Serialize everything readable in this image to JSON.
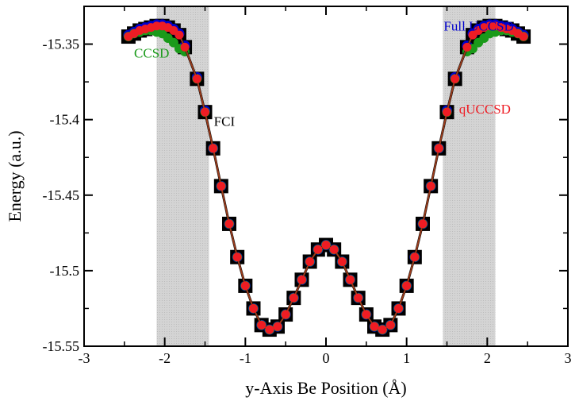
{
  "chart_data": {
    "type": "line",
    "xlabel": "y-Axis Be Position (Å)",
    "ylabel": "Energy (a.u.)",
    "xlim": [
      -3,
      3
    ],
    "ylim": [
      -15.55,
      -15.325
    ],
    "x_ticks": [
      -3,
      -2,
      -1,
      0,
      1,
      2,
      3
    ],
    "x_tick_labels": [
      "-3",
      "-2",
      "-1",
      "0",
      "1",
      "2",
      "3"
    ],
    "y_ticks": [
      -15.55,
      -15.5,
      -15.45,
      -15.4,
      -15.35
    ],
    "y_tick_labels": [
      "-15.55",
      "-15.5",
      "-15.45",
      "-15.4",
      "-15.35"
    ],
    "shaded_regions": [
      [
        -2.1,
        -1.45
      ],
      [
        1.45,
        2.1
      ]
    ],
    "x": [
      -2.45,
      -2.38,
      -2.31,
      -2.24,
      -2.17,
      -2.1,
      -2.03,
      -1.96,
      -1.89,
      -1.82,
      -1.75,
      -1.6,
      -1.5,
      -1.4,
      -1.3,
      -1.2,
      -1.1,
      -1.0,
      -0.9,
      -0.8,
      -0.7,
      -0.6,
      -0.5,
      -0.4,
      -0.3,
      -0.2,
      -0.1,
      0.0,
      0.1,
      0.2,
      0.3,
      0.4,
      0.5,
      0.6,
      0.7,
      0.8,
      0.9,
      1.0,
      1.1,
      1.2,
      1.3,
      1.4,
      1.5,
      1.6,
      1.75,
      1.82,
      1.89,
      1.96,
      2.03,
      2.1,
      2.17,
      2.24,
      2.31,
      2.38,
      2.45
    ],
    "series": [
      {
        "name": "FCI",
        "color": "#000000",
        "marker": "square",
        "values": [
          -15.345,
          -15.343,
          -15.341,
          -15.34,
          -15.339,
          -15.338,
          -15.338,
          -15.339,
          -15.341,
          -15.344,
          -15.352,
          -15.373,
          -15.395,
          -15.419,
          -15.444,
          -15.469,
          -15.491,
          -15.51,
          -15.525,
          -15.536,
          -15.539,
          -15.537,
          -15.529,
          -15.518,
          -15.506,
          -15.494,
          -15.486,
          -15.483,
          -15.486,
          -15.494,
          -15.506,
          -15.518,
          -15.529,
          -15.537,
          -15.539,
          -15.536,
          -15.525,
          -15.51,
          -15.491,
          -15.469,
          -15.444,
          -15.419,
          -15.395,
          -15.373,
          -15.352,
          -15.344,
          -15.341,
          -15.339,
          -15.338,
          -15.338,
          -15.339,
          -15.34,
          -15.341,
          -15.343,
          -15.345
        ]
      },
      {
        "name": "Full UCCSD",
        "color": "#0000cc",
        "marker": "circle",
        "values": [
          -15.344,
          -15.342,
          -15.34,
          -15.339,
          -15.338,
          -15.337,
          -15.337,
          -15.338,
          -15.34,
          -15.343,
          -15.351,
          -15.372,
          -15.394,
          -15.419,
          -15.444,
          -15.469,
          -15.491,
          -15.51,
          -15.525,
          -15.536,
          -15.539,
          -15.537,
          -15.529,
          -15.518,
          -15.506,
          -15.494,
          -15.486,
          -15.483,
          -15.486,
          -15.494,
          -15.506,
          -15.518,
          -15.529,
          -15.537,
          -15.539,
          -15.536,
          -15.525,
          -15.51,
          -15.491,
          -15.469,
          -15.444,
          -15.419,
          -15.394,
          -15.372,
          -15.351,
          -15.343,
          -15.34,
          -15.338,
          -15.337,
          -15.337,
          -15.338,
          -15.339,
          -15.34,
          -15.342,
          -15.344
        ]
      },
      {
        "name": "CCSD",
        "color": "#1a9a1a",
        "marker": "circle",
        "values": [
          -15.345,
          -15.343,
          -15.342,
          -15.341,
          -15.341,
          -15.342,
          -15.343,
          -15.346,
          -15.349,
          -15.353,
          -15.355,
          -15.373,
          -15.395,
          -15.419,
          -15.444,
          -15.469,
          -15.491,
          -15.51,
          -15.525,
          -15.536,
          -15.539,
          -15.537,
          -15.529,
          -15.518,
          -15.506,
          -15.494,
          -15.486,
          -15.483,
          -15.486,
          -15.494,
          -15.506,
          -15.518,
          -15.529,
          -15.537,
          -15.539,
          -15.536,
          -15.525,
          -15.51,
          -15.491,
          -15.469,
          -15.444,
          -15.419,
          -15.395,
          -15.373,
          -15.355,
          -15.353,
          -15.349,
          -15.346,
          -15.343,
          -15.342,
          -15.341,
          -15.341,
          -15.342,
          -15.343,
          -15.345
        ]
      },
      {
        "name": "qUCCSD",
        "color": "#ee1c24",
        "marker": "circle",
        "values": [
          -15.345,
          -15.343,
          -15.341,
          -15.34,
          -15.339,
          -15.338,
          -15.338,
          -15.339,
          -15.341,
          -15.344,
          -15.352,
          -15.373,
          -15.395,
          -15.419,
          -15.444,
          -15.469,
          -15.491,
          -15.51,
          -15.525,
          -15.536,
          -15.539,
          -15.537,
          -15.529,
          -15.518,
          -15.506,
          -15.494,
          -15.486,
          -15.483,
          -15.486,
          -15.494,
          -15.506,
          -15.518,
          -15.529,
          -15.537,
          -15.539,
          -15.536,
          -15.525,
          -15.51,
          -15.491,
          -15.469,
          -15.444,
          -15.419,
          -15.395,
          -15.373,
          -15.352,
          -15.344,
          -15.341,
          -15.339,
          -15.338,
          -15.338,
          -15.339,
          -15.34,
          -15.341,
          -15.343,
          -15.345
        ]
      }
    ],
    "annotations": [
      {
        "text": "Full UCCSD",
        "x": 1.46,
        "y": -15.341,
        "color": "#0000cc"
      },
      {
        "text": "CCSD",
        "x": -2.38,
        "y": -15.359,
        "color": "#1a9a1a"
      },
      {
        "text": "FCI",
        "x": -1.39,
        "y": -15.404,
        "color": "#000000"
      },
      {
        "text": "qUCCSD",
        "x": 1.65,
        "y": -15.396,
        "color": "#ee1c24"
      }
    ]
  }
}
